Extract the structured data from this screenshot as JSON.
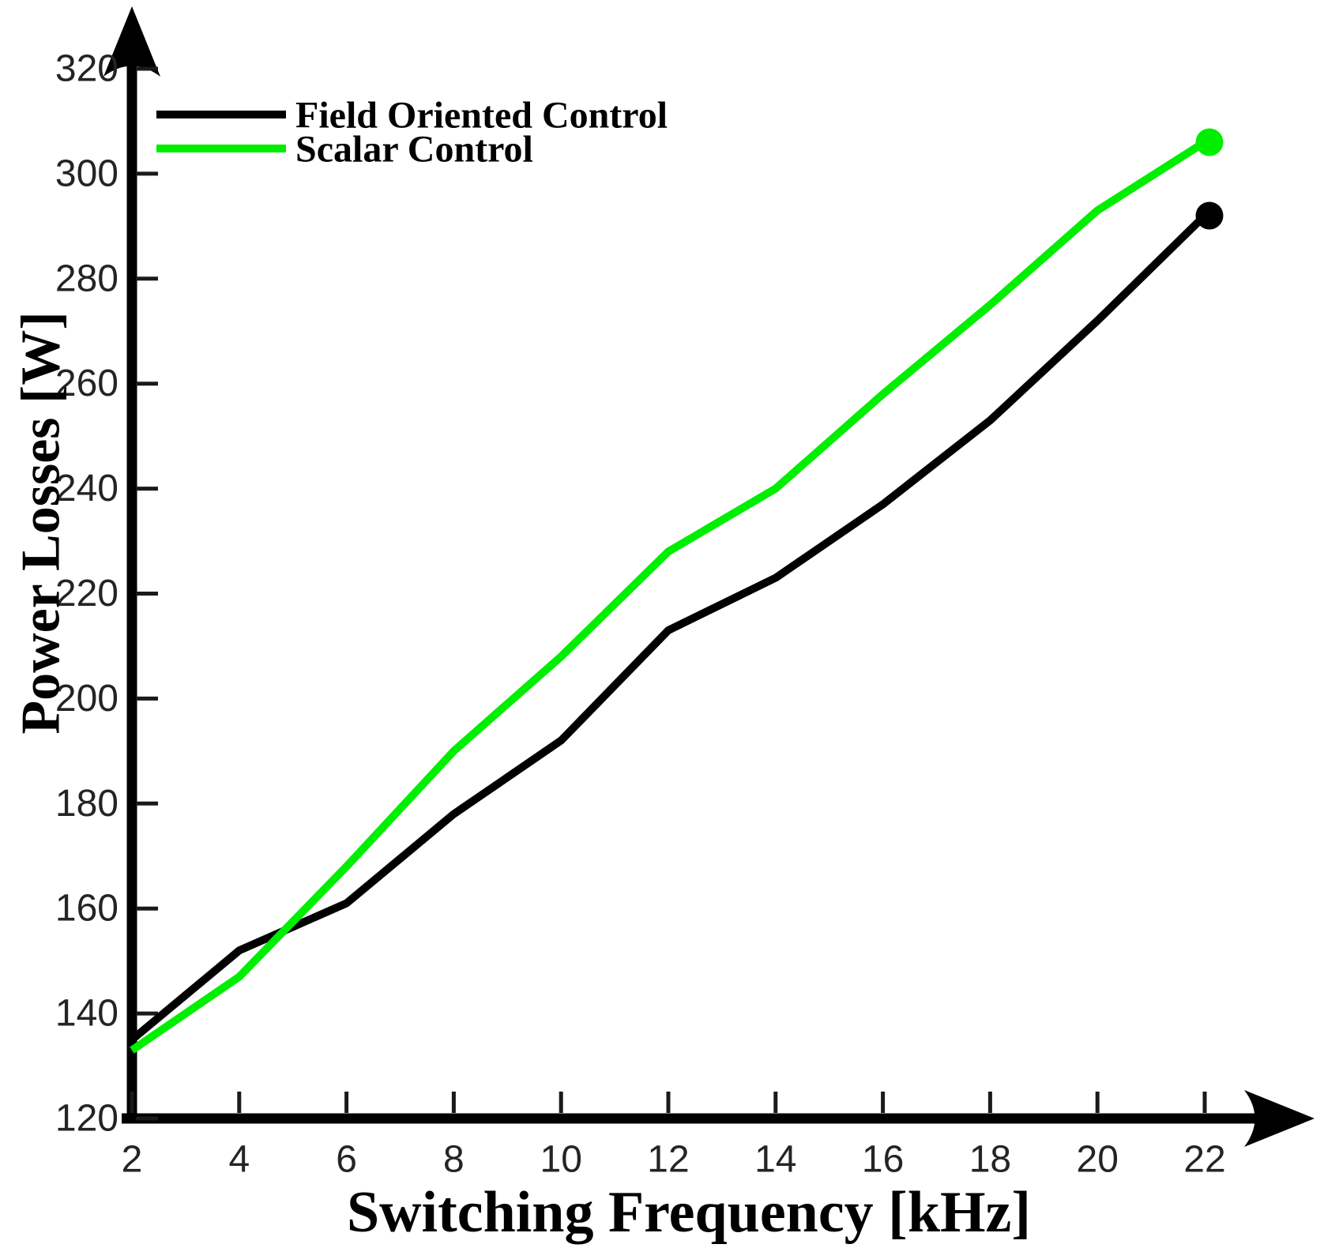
{
  "chart_data": {
    "type": "line",
    "title": "",
    "xlabel": "Switching Frequency [kHz]",
    "ylabel": "Power Losses [W]",
    "x": [
      2,
      4,
      6,
      8,
      10,
      12,
      14,
      16,
      18,
      20,
      22
    ],
    "x_tick_labels": [
      "2",
      "4",
      "6",
      "8",
      "10",
      "12",
      "14",
      "16",
      "18",
      "20",
      "22"
    ],
    "y_ticks": [
      120,
      140,
      160,
      180,
      200,
      220,
      240,
      260,
      280,
      300,
      320
    ],
    "y_tick_labels": [
      "120",
      "140",
      "160",
      "180",
      "200",
      "220",
      "240",
      "260",
      "280",
      "300",
      "320"
    ],
    "xlim": [
      2,
      22
    ],
    "ylim": [
      120,
      320
    ],
    "grid": false,
    "legend_position": "top-left-inside",
    "series": [
      {
        "name": "Field Oriented Control",
        "color": "#000000",
        "values": [
          135,
          152,
          161,
          178,
          192,
          213,
          223,
          237,
          253,
          272,
          292
        ],
        "end_marker": "filled-circle"
      },
      {
        "name": "Scalar Control",
        "color": "#00ee00",
        "values": [
          133,
          147,
          168,
          190,
          208,
          228,
          240,
          258,
          275,
          293,
          306
        ],
        "end_marker": "filled-circle"
      }
    ],
    "axis_color": "#000000",
    "tick_label_color": "#242424",
    "axes_have_arrowheads": true
  }
}
